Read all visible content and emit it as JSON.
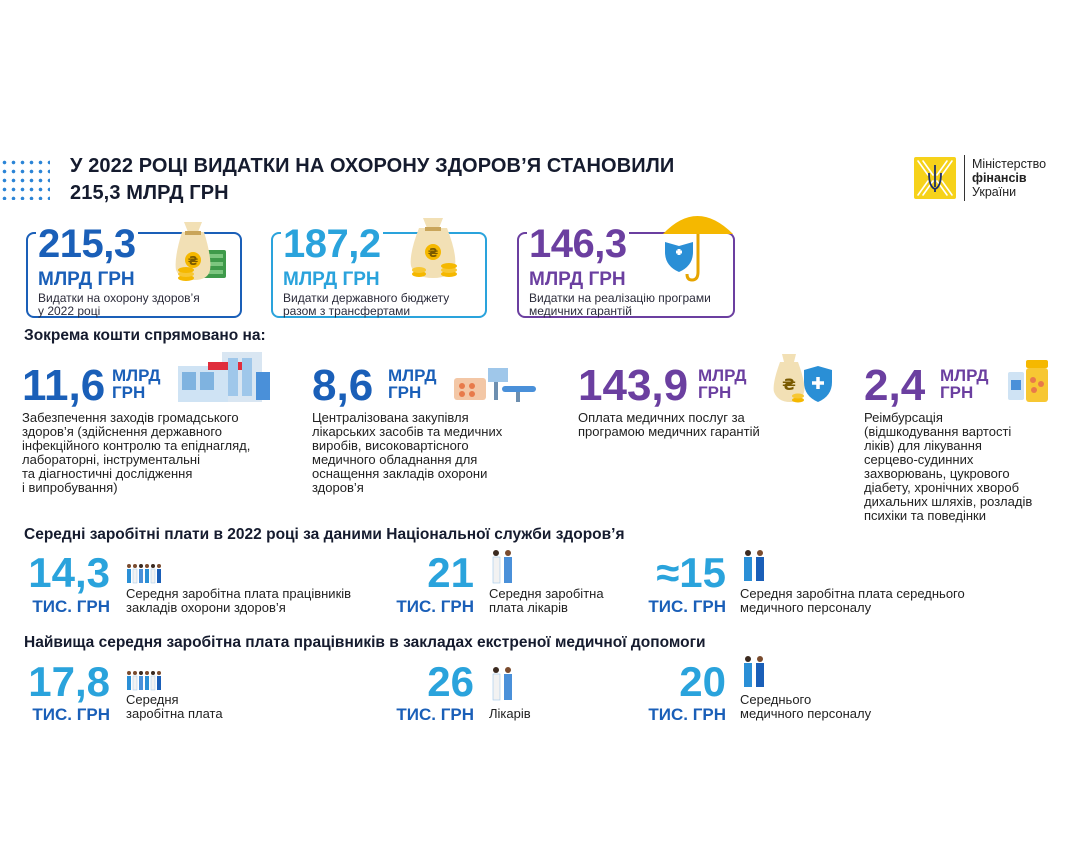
{
  "header": {
    "title_line1": "У 2022 РОЦІ ВИДАТКИ НА ОХОРОНУ ЗДОРОВ’Я СТАНОВИЛИ",
    "title_line2": "215,3 МЛРД ГРН"
  },
  "logo": {
    "line1": "Міністерство",
    "line2": "фінансів",
    "line3": "України"
  },
  "cards": [
    {
      "value": "215,3",
      "unit": "МЛРД ГРН",
      "desc1": "Видатки на охорону здоров’я",
      "desc2": "у 2022 році",
      "color": "#1a5fb8"
    },
    {
      "value": "187,2",
      "unit": "МЛРД ГРН",
      "desc1": "Видатки державного бюджету",
      "desc2": "разом з трансфертами",
      "color": "#2aa3dc"
    },
    {
      "value": "146,3",
      "unit": "МЛРД ГРН",
      "desc1": "Видатки на реалізацію програми",
      "desc2": "медичних гарантій",
      "color": "#6b3fa0"
    }
  ],
  "funds_heading": "Зокрема кошти спрямовано на:",
  "funds": [
    {
      "value": "11,6",
      "unit1": "МЛРД",
      "unit2": "ГРН",
      "desc": [
        "Забезпечення заходів громадського",
        "здоров’я (здійснення державного",
        "інфекційного контролю та епіднагляд,",
        "лабораторні, інструментальні",
        "та діагностичні дослідження",
        "і випробування)"
      ]
    },
    {
      "value": "8,6",
      "unit1": "МЛРД",
      "unit2": "ГРН",
      "desc": [
        "Централізована закупівля",
        "лікарських засобів та медичних",
        "виробів, високовартісного",
        "медичного обладнання для",
        "оснащення закладів охорони",
        "здоров’я"
      ]
    },
    {
      "value": "143,9",
      "unit1": "МЛРД",
      "unit2": "ГРН",
      "desc": [
        "Оплата медичних послуг за",
        "програмою медичних гарантій"
      ]
    },
    {
      "value": "2,4",
      "unit1": "МЛРД",
      "unit2": "ГРН",
      "desc": [
        "Реімбурсація",
        "(відшкодування вартості",
        "ліків) для лікування",
        "серцево-судинних",
        "захворювань, цукрового",
        "діабету, хронічних хвороб",
        "дихальних шляхів, розладів",
        "психіки та поведінки"
      ]
    }
  ],
  "salaries_heading": "Середні заробітні плати в 2022 році за даними Національної служби здоров’я",
  "salaries": [
    {
      "value": "14,3",
      "unit": "ТИС. ГРН",
      "desc1": "Середня заробітна плата  працівників",
      "desc2": "закладів охорони здоров’я"
    },
    {
      "value": "21",
      "unit": "ТИС. ГРН",
      "desc1": "Середня заробітна",
      "desc2": "плата лікарів"
    },
    {
      "value": "≈15",
      "unit": "ТИС. ГРН",
      "desc1": "Середня заробітна плата середнього",
      "desc2": "медичного персоналу"
    }
  ],
  "emergency_heading": "Найвища середня заробітна плата працівників в закладах екстреної медичної допомоги",
  "emergency": [
    {
      "value": "17,8",
      "unit": "ТИС. ГРН",
      "desc1": "Середня",
      "desc2": "заробітна плата"
    },
    {
      "value": "26",
      "unit": "ТИС. ГРН",
      "desc1": "Лікарів",
      "desc2": ""
    },
    {
      "value": "20",
      "unit": "ТИС. ГРН",
      "desc1": "Середнього",
      "desc2": "медичного персоналу"
    }
  ],
  "colors": {
    "dark_blue": "#1a5fb8",
    "light_blue": "#2aa3dc",
    "purple": "#6b3fa0",
    "gold": "#f6d21a"
  },
  "icons": [
    "money-bag-icon",
    "money-bag-icon",
    "umbrella-shield-icon",
    "laboratory-icon",
    "medical-equipment-icon",
    "money-bag-shield-icon",
    "pills-icon",
    "people-group-icon",
    "doctors-icon",
    "nurses-icon"
  ]
}
